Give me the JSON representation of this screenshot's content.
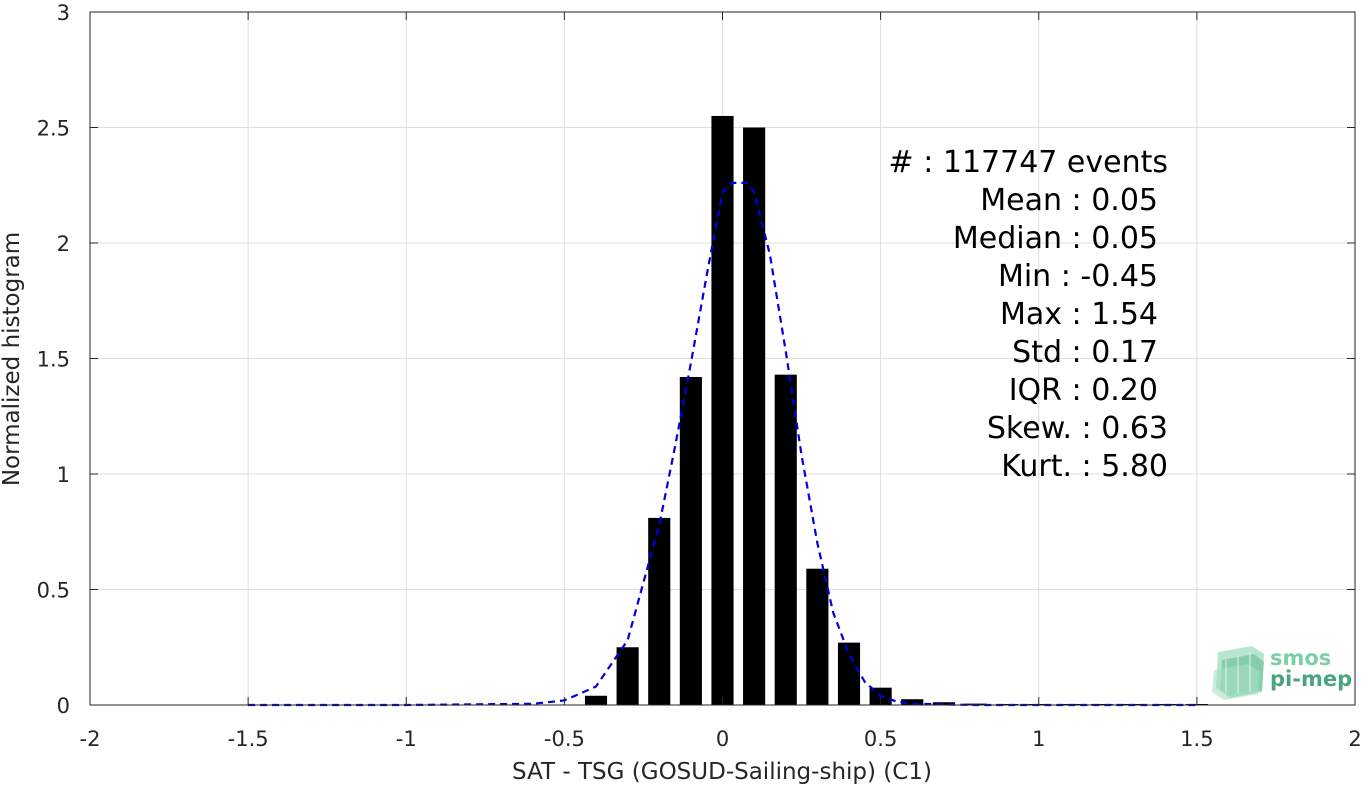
{
  "chart_data": {
    "type": "bar",
    "xlabel": "SAT - TSG (GOSUD-Sailing-ship) (C1)",
    "ylabel": "Normalized histogram",
    "xlim": [
      -2,
      2
    ],
    "ylim": [
      0,
      3
    ],
    "x_ticks": [
      -2,
      -1.5,
      -1,
      -0.5,
      0,
      0.5,
      1,
      1.5,
      2
    ],
    "y_ticks": [
      0,
      0.5,
      1,
      1.5,
      2,
      2.5,
      3
    ],
    "x_tick_labels": [
      "-2",
      "-1.5",
      "-1",
      "-0.5",
      "0",
      "0.5",
      "1",
      "1.5",
      "2"
    ],
    "y_tick_labels": [
      "0",
      "0.5",
      "1",
      "1.5",
      "2",
      "2.5",
      "3"
    ],
    "grid": true,
    "bar_width": 0.07,
    "bar_color": "#000000",
    "bars": [
      {
        "x": -0.4,
        "y": 0.04
      },
      {
        "x": -0.3,
        "y": 0.25
      },
      {
        "x": -0.2,
        "y": 0.81
      },
      {
        "x": -0.1,
        "y": 1.42
      },
      {
        "x": 0.0,
        "y": 2.55
      },
      {
        "x": 0.1,
        "y": 2.5
      },
      {
        "x": 0.2,
        "y": 1.43
      },
      {
        "x": 0.3,
        "y": 0.59
      },
      {
        "x": 0.4,
        "y": 0.27
      },
      {
        "x": 0.5,
        "y": 0.075
      },
      {
        "x": 0.6,
        "y": 0.025
      },
      {
        "x": 0.7,
        "y": 0.012
      },
      {
        "x": 0.8,
        "y": 0.006
      },
      {
        "x": 0.9,
        "y": 0.004
      },
      {
        "x": 1.0,
        "y": 0.003
      },
      {
        "x": 1.1,
        "y": 0.002
      },
      {
        "x": 1.2,
        "y": 0.002
      },
      {
        "x": 1.3,
        "y": 0.001
      },
      {
        "x": 1.4,
        "y": 0.001
      },
      {
        "x": 1.5,
        "y": 0.001
      }
    ],
    "fit_curve": {
      "color": "#0000dd",
      "style": "dashed",
      "points": [
        [
          -1.5,
          0.0
        ],
        [
          -1.0,
          0.0
        ],
        [
          -0.6,
          0.005
        ],
        [
          -0.5,
          0.02
        ],
        [
          -0.45,
          0.05
        ],
        [
          -0.4,
          0.08
        ],
        [
          -0.35,
          0.18
        ],
        [
          -0.3,
          0.28
        ],
        [
          -0.25,
          0.53
        ],
        [
          -0.2,
          0.78
        ],
        [
          -0.15,
          1.12
        ],
        [
          -0.1,
          1.48
        ],
        [
          -0.05,
          1.86
        ],
        [
          0.0,
          2.22
        ],
        [
          0.03,
          2.26
        ],
        [
          0.08,
          2.26
        ],
        [
          0.1,
          2.22
        ],
        [
          0.15,
          1.95
        ],
        [
          0.2,
          1.53
        ],
        [
          0.25,
          1.08
        ],
        [
          0.3,
          0.7
        ],
        [
          0.35,
          0.4
        ],
        [
          0.4,
          0.22
        ],
        [
          0.45,
          0.1
        ],
        [
          0.5,
          0.04
        ],
        [
          0.55,
          0.015
        ],
        [
          0.6,
          0.005
        ],
        [
          0.8,
          0.0
        ],
        [
          1.0,
          0.0
        ],
        [
          1.5,
          0.0
        ]
      ]
    },
    "annotation_lines": [
      "#  : 117747 events",
      "Mean : 0.05",
      "Median : 0.05",
      "Min : -0.45",
      "Max : 1.54",
      "Std : 0.17",
      "IQR : 0.20",
      "Skew. : 0.63",
      "Kurt. : 5.80"
    ]
  },
  "logo": {
    "line1": "smos",
    "line2": "pi-mep",
    "color_light": "#7ccfa4",
    "color_dark": "#4aa57e"
  }
}
